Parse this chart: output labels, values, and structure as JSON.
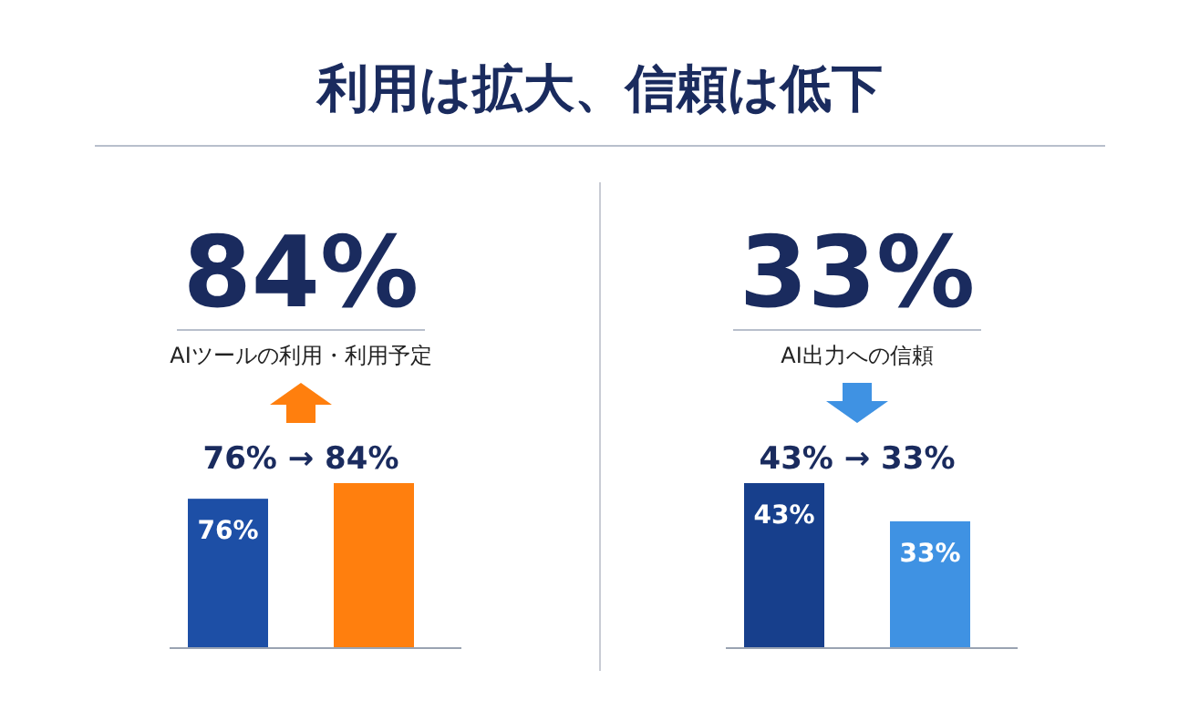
{
  "chart_data": [
    {
      "type": "other",
      "title": "利用は拡大、信頼は低下"
    },
    {
      "type": "bar",
      "title": "84%",
      "subtitle": "AIツールの利用・利用予定",
      "annotations": [
        "76% → 84%"
      ],
      "categories": [
        null,
        null
      ],
      "values": [
        76,
        84
      ],
      "colors": [
        "#1d4fa6",
        "#ff7f0e"
      ],
      "value_labels": [
        "76%",
        null
      ]
    },
    {
      "type": "bar",
      "title": "33%",
      "subtitle": "AI出力への信頼",
      "annotations": [
        "43% → 33%"
      ],
      "categories": [
        null,
        null
      ],
      "values": [
        43,
        33
      ],
      "colors": [
        "#173f8c",
        "#3f92e3"
      ],
      "value_labels": [
        "43%",
        "33%"
      ]
    }
  ]
}
